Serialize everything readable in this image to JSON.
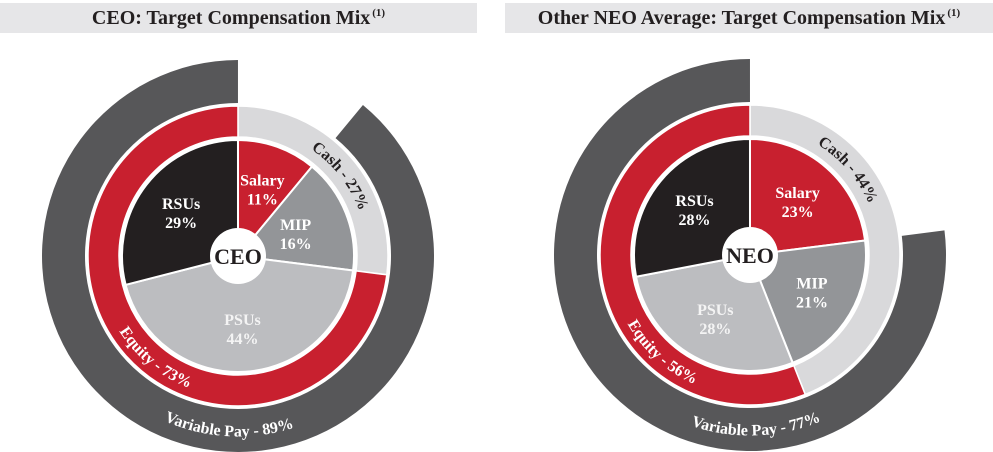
{
  "chart_data": [
    {
      "type": "pie",
      "title": "CEO: Target Compensation Mix",
      "title_note": "(1)",
      "center_label": "CEO",
      "slices": [
        {
          "name": "Salary",
          "value": 11,
          "label": "11%",
          "color": "#c8202f",
          "text_color": "#ffffff"
        },
        {
          "name": "MIP",
          "value": 16,
          "label": "16%",
          "color": "#939598",
          "text_color": "#ffffff"
        },
        {
          "name": "PSUs",
          "value": 44,
          "label": "44%",
          "color": "#bcbdc0",
          "text_color": "#f4f4f4"
        },
        {
          "name": "RSUs",
          "value": 29,
          "label": "29%",
          "color": "#231f20",
          "text_color": "#ffffff"
        }
      ],
      "middle_ring": [
        {
          "name": "Cash",
          "value": 27,
          "label": "Cash - 27%",
          "color": "#d9d9db",
          "text_color": "#231f20"
        },
        {
          "name": "Equity",
          "value": 73,
          "label": "Equity - 73%",
          "color": "#c8202f",
          "text_color": "#ffffff"
        }
      ],
      "outer_ring": {
        "name": "Variable Pay",
        "value": 89,
        "label": "Variable Pay - 89%",
        "color": "#575759",
        "text_color": "#ffffff"
      }
    },
    {
      "type": "pie",
      "title": "Other NEO Average: Target Compensation Mix",
      "title_note": "(1)",
      "center_label": "NEO",
      "slices": [
        {
          "name": "Salary",
          "value": 23,
          "label": "23%",
          "color": "#c8202f",
          "text_color": "#ffffff"
        },
        {
          "name": "MIP",
          "value": 21,
          "label": "21%",
          "color": "#939598",
          "text_color": "#ffffff"
        },
        {
          "name": "PSUs",
          "value": 28,
          "label": "28%",
          "color": "#bcbdc0",
          "text_color": "#f4f4f4"
        },
        {
          "name": "RSUs",
          "value": 28,
          "label": "28%",
          "color": "#231f20",
          "text_color": "#ffffff"
        }
      ],
      "middle_ring": [
        {
          "name": "Cash",
          "value": 44,
          "label": "Cash - 44%",
          "color": "#d9d9db",
          "text_color": "#231f20"
        },
        {
          "name": "Equity",
          "value": 56,
          "label": "Equity - 56%",
          "color": "#c8202f",
          "text_color": "#ffffff"
        }
      ],
      "outer_ring": {
        "name": "Variable Pay",
        "value": 77,
        "label": "Variable Pay - 77%",
        "color": "#575759",
        "text_color": "#ffffff"
      }
    }
  ]
}
